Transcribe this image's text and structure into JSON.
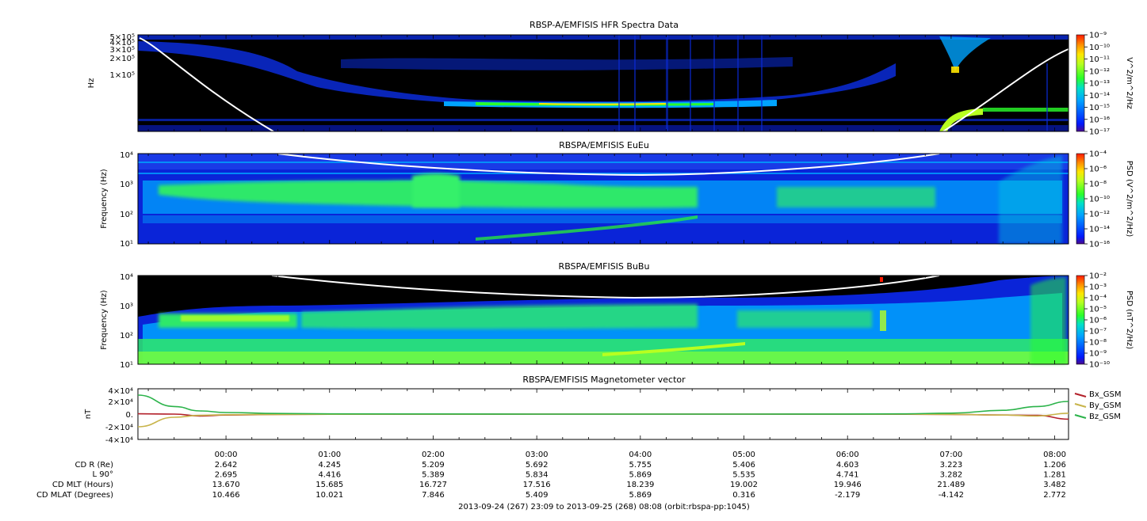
{
  "chart_data": [
    {
      "type": "heatmap",
      "title": "RBSP-A/EMFISIS  HFR Spectra Data",
      "ylabel": "Hz",
      "y_scale": "log",
      "y_ticks": [
        "1×10⁵",
        "2×10⁵",
        "3×10⁵",
        "4×10⁵",
        "5×10⁵"
      ],
      "colorbar": {
        "label": "V^2/m^2/Hz",
        "scale": "log",
        "ticks": [
          "10⁻¹⁷",
          "10⁻¹⁶",
          "10⁻¹⁵",
          "10⁻¹⁴",
          "10⁻¹³",
          "10⁻¹²",
          "10⁻¹¹",
          "10⁻¹⁰",
          "10⁻⁹"
        ]
      }
    },
    {
      "type": "heatmap",
      "title": "RBSPA/EMFISIS  EuEu",
      "ylabel": "Frequency (Hz)",
      "y_scale": "log",
      "y_ticks": [
        "10¹",
        "10²",
        "10³",
        "10⁴"
      ],
      "ylim": [
        10,
        10000
      ],
      "colorbar": {
        "label": "PSD (V^2/m^2/Hz)",
        "scale": "log",
        "ticks": [
          "10⁻¹⁶",
          "10⁻¹⁴",
          "10⁻¹²",
          "10⁻¹⁰",
          "10⁻⁸",
          "10⁻⁶",
          "10⁻⁴"
        ]
      }
    },
    {
      "type": "heatmap",
      "title": "RBSPA/EMFISIS  BuBu",
      "ylabel": "Frequency (Hz)",
      "y_scale": "log",
      "y_ticks": [
        "10¹",
        "10²",
        "10³",
        "10⁴"
      ],
      "ylim": [
        10,
        10000
      ],
      "colorbar": {
        "label": "PSD (nT^2/Hz)",
        "scale": "log",
        "ticks": [
          "10⁻¹⁰",
          "10⁻⁹",
          "10⁻⁸",
          "10⁻⁷",
          "10⁻⁶",
          "10⁻⁵",
          "10⁻⁴",
          "10⁻³",
          "10⁻²"
        ]
      }
    },
    {
      "type": "line",
      "title": "RBSPA/EMFISIS  Magnetometer vector",
      "ylabel": "nT",
      "ylim": [
        -40000,
        40000
      ],
      "y_ticks": [
        "-4×10⁴",
        "-2×10⁴",
        "0.",
        "2×10⁴",
        "4×10⁴"
      ],
      "x": [
        "23:09",
        "23:30",
        "23:45",
        "00:00",
        "00:30",
        "01:00",
        "03:00",
        "05:00",
        "06:00",
        "06:30",
        "07:00",
        "07:30",
        "07:50",
        "08:08"
      ],
      "series": [
        {
          "name": "Bx_GSM",
          "color": "#b3202a",
          "values": [
            500,
            0,
            -3000,
            -1500,
            -600,
            -200,
            0,
            0,
            -100,
            -200,
            -600,
            -1500,
            -2000,
            -8000
          ]
        },
        {
          "name": "By_GSM",
          "color": "#c8b44a",
          "values": [
            -20000,
            -5000,
            -2000,
            -1000,
            -500,
            -200,
            0,
            0,
            0,
            -100,
            -400,
            -1500,
            -3000,
            1500
          ]
        },
        {
          "name": "Bz_GSM",
          "color": "#2bb34a",
          "values": [
            30000,
            12000,
            5000,
            2500,
            1000,
            400,
            0,
            0,
            100,
            400,
            1500,
            6000,
            12000,
            20000
          ]
        }
      ]
    }
  ],
  "x_axis": {
    "tick_labels": [
      "00:00",
      "01:00",
      "02:00",
      "03:00",
      "04:00",
      "05:00",
      "06:00",
      "07:00",
      "08:00"
    ],
    "ephemeris": [
      {
        "label": "CD R (Re)",
        "values": [
          "2.642",
          "4.245",
          "5.209",
          "5.692",
          "5.755",
          "5.406",
          "4.603",
          "3.223",
          "1.206"
        ]
      },
      {
        "label": "L 90°",
        "values": [
          "2.695",
          "4.416",
          "5.389",
          "5.834",
          "5.869",
          "5.535",
          "4.741",
          "3.282",
          "1.281"
        ]
      },
      {
        "label": "CD MLT (Hours)",
        "values": [
          "13.670",
          "15.685",
          "16.727",
          "17.516",
          "18.239",
          "19.002",
          "19.946",
          "21.489",
          "3.482"
        ]
      },
      {
        "label": "CD MLAT (Degrees)",
        "values": [
          "10.466",
          "10.021",
          "7.846",
          "5.409",
          "5.869",
          "0.316",
          "-2.179",
          "-4.142",
          "2.772"
        ]
      }
    ]
  },
  "footer": "2013-09-24 (267) 23:09 to 2013-09-25 (268) 08:08 (orbit:rbspa-pp:1045)",
  "colors": {
    "spectrogram_background": "#000000",
    "spectrogram_floor": "#0a1fd6",
    "colormap": [
      "#4b0a8c",
      "#0019ff",
      "#00a4ff",
      "#00e0c8",
      "#2aff2a",
      "#b8ff20",
      "#ffe600",
      "#ff8c00",
      "#ff1a00"
    ],
    "gyro_line": "#ffffff"
  }
}
